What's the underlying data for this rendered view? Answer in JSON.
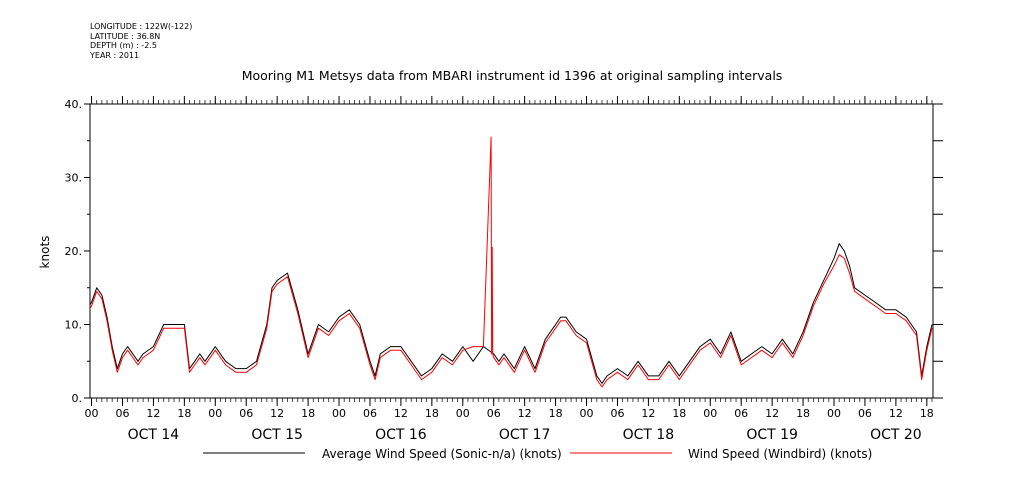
{
  "meta": {
    "longitude": "LONGITUDE : 122W(-122)",
    "latitude": "LATITUDE : 36.8N",
    "depth": "DEPTH (m) : -2.5",
    "year": "YEAR : 2011"
  },
  "chart_data": {
    "type": "line",
    "title": "Mooring M1 Metsys data from MBARI instrument id 1396 at original sampling intervals",
    "ylabel": "knots",
    "xlabel": "",
    "ylim": [
      0,
      40
    ],
    "yticks": [
      0,
      10,
      20,
      30,
      40
    ],
    "ytick_labels": [
      "0.",
      "10.",
      "20.",
      "30.",
      "40."
    ],
    "xlim": [
      -0.3,
      163.2
    ],
    "hour_ticks": [
      {
        "t": 0,
        "label": "00"
      },
      {
        "t": 6,
        "label": "06"
      },
      {
        "t": 12,
        "label": "12"
      },
      {
        "t": 18,
        "label": "18"
      },
      {
        "t": 24,
        "label": "00"
      },
      {
        "t": 30,
        "label": "06"
      },
      {
        "t": 36,
        "label": "12"
      },
      {
        "t": 42,
        "label": "18"
      },
      {
        "t": 48,
        "label": "00"
      },
      {
        "t": 54,
        "label": "06"
      },
      {
        "t": 60,
        "label": "12"
      },
      {
        "t": 66,
        "label": "18"
      },
      {
        "t": 72,
        "label": "00"
      },
      {
        "t": 78,
        "label": "06"
      },
      {
        "t": 84,
        "label": "12"
      },
      {
        "t": 90,
        "label": "18"
      },
      {
        "t": 96,
        "label": "00"
      },
      {
        "t": 102,
        "label": "06"
      },
      {
        "t": 108,
        "label": "12"
      },
      {
        "t": 114,
        "label": "18"
      },
      {
        "t": 120,
        "label": "00"
      },
      {
        "t": 126,
        "label": "06"
      },
      {
        "t": 132,
        "label": "12"
      },
      {
        "t": 138,
        "label": "18"
      },
      {
        "t": 144,
        "label": "00"
      },
      {
        "t": 150,
        "label": "06"
      },
      {
        "t": 156,
        "label": "12"
      },
      {
        "t": 162,
        "label": "18"
      }
    ],
    "date_labels": [
      {
        "t": 12,
        "label": "OCT 14"
      },
      {
        "t": 36,
        "label": "OCT 15"
      },
      {
        "t": 60,
        "label": "OCT 16"
      },
      {
        "t": 84,
        "label": "OCT 17"
      },
      {
        "t": 108,
        "label": "OCT 18"
      },
      {
        "t": 132,
        "label": "OCT 19"
      },
      {
        "t": 156,
        "label": "OCT 20"
      }
    ],
    "x_unit": "hours from OCT 14 00",
    "series": [
      {
        "name": "Average Wind Speed (Sonic-n/a) (knots)",
        "color": "#000000",
        "x": [
          -1,
          0,
          1,
          2,
          3,
          4,
          5,
          6,
          7,
          8,
          9,
          10,
          12,
          14,
          16,
          18,
          19,
          20,
          21,
          22,
          24,
          26,
          28,
          30,
          32,
          34,
          35,
          36,
          38,
          40,
          42,
          44,
          46,
          48,
          50,
          52,
          54,
          55,
          56,
          58,
          60,
          62,
          64,
          66,
          68,
          70,
          72,
          74,
          76,
          78,
          79,
          80,
          82,
          84,
          86,
          88,
          90,
          91,
          92,
          94,
          96,
          98,
          99,
          100,
          102,
          104,
          106,
          108,
          110,
          112,
          114,
          116,
          118,
          120,
          122,
          124,
          126,
          128,
          130,
          132,
          134,
          136,
          138,
          140,
          142,
          144,
          145,
          146,
          147,
          148,
          150,
          152,
          154,
          156,
          158,
          160,
          161,
          162,
          163
        ],
        "y": [
          12,
          13,
          15,
          14,
          11,
          7,
          4,
          6,
          7,
          6,
          5,
          6,
          7,
          10,
          10,
          10,
          4,
          5,
          6,
          5,
          7,
          5,
          4,
          4,
          5,
          10,
          15,
          16,
          17,
          12,
          6,
          10,
          9,
          11,
          12,
          10,
          5,
          3,
          6,
          7,
          7,
          5,
          3,
          4,
          6,
          5,
          7,
          5,
          7,
          6,
          5,
          6,
          4,
          7,
          4,
          8,
          10,
          11,
          11,
          9,
          8,
          3,
          2,
          3,
          4,
          3,
          5,
          3,
          3,
          5,
          3,
          5,
          7,
          8,
          6,
          9,
          5,
          6,
          7,
          6,
          8,
          6,
          9,
          13,
          16,
          19,
          21,
          20,
          18,
          15,
          14,
          13,
          12,
          12,
          11,
          9,
          3,
          7,
          10
        ]
      },
      {
        "name": "Wind Speed (Windbird) (knots)",
        "color": "#ff0000",
        "x": [
          -1,
          0,
          1,
          2,
          3,
          4,
          5,
          6,
          7,
          8,
          9,
          10,
          12,
          14,
          16,
          18,
          19,
          20,
          21,
          22,
          24,
          26,
          28,
          30,
          32,
          34,
          35,
          36,
          38,
          40,
          42,
          44,
          46,
          48,
          50,
          52,
          54,
          55,
          56,
          58,
          60,
          62,
          64,
          66,
          68,
          70,
          72,
          74,
          76,
          77.5,
          77.6,
          77.7,
          77.8,
          78,
          79,
          80,
          82,
          84,
          86,
          88,
          90,
          91,
          92,
          94,
          96,
          98,
          99,
          100,
          102,
          104,
          106,
          108,
          110,
          112,
          114,
          116,
          118,
          120,
          122,
          124,
          126,
          128,
          130,
          132,
          134,
          136,
          138,
          140,
          142,
          144,
          145,
          146,
          147,
          148,
          150,
          152,
          154,
          156,
          158,
          160,
          161,
          162,
          163
        ],
        "y": [
          11.5,
          12.5,
          14.5,
          13.5,
          10.5,
          6.5,
          3.5,
          5.5,
          6.5,
          5.5,
          4.5,
          5.5,
          6.5,
          9.5,
          9.5,
          9.5,
          3.5,
          4.5,
          5.5,
          4.5,
          6.5,
          4.5,
          3.5,
          3.5,
          4.5,
          9.5,
          14.5,
          15.5,
          16.5,
          11.5,
          5.5,
          9.5,
          8.5,
          10.5,
          11.5,
          9.5,
          4.5,
          2.5,
          5.5,
          6.5,
          6.5,
          4.5,
          2.5,
          3.5,
          5.5,
          4.5,
          6.5,
          7,
          7,
          35.5,
          6,
          20.5,
          6,
          5.5,
          4.5,
          5.5,
          3.5,
          6.5,
          3.5,
          7.5,
          9.5,
          10.5,
          10.5,
          8.5,
          7.5,
          2.5,
          1.5,
          2.5,
          3.5,
          2.5,
          4.5,
          2.5,
          2.5,
          4.5,
          2.5,
          4.5,
          6.5,
          7.5,
          5.5,
          8.5,
          4.5,
          5.5,
          6.5,
          5.5,
          7.5,
          5.5,
          8.5,
          12.5,
          15.5,
          18,
          19.5,
          19,
          17,
          14.5,
          13.5,
          12.5,
          11.5,
          11.5,
          10.5,
          8.5,
          2.5,
          6.5,
          9.5
        ]
      }
    ],
    "grid": false,
    "legend_position": "bottom"
  }
}
